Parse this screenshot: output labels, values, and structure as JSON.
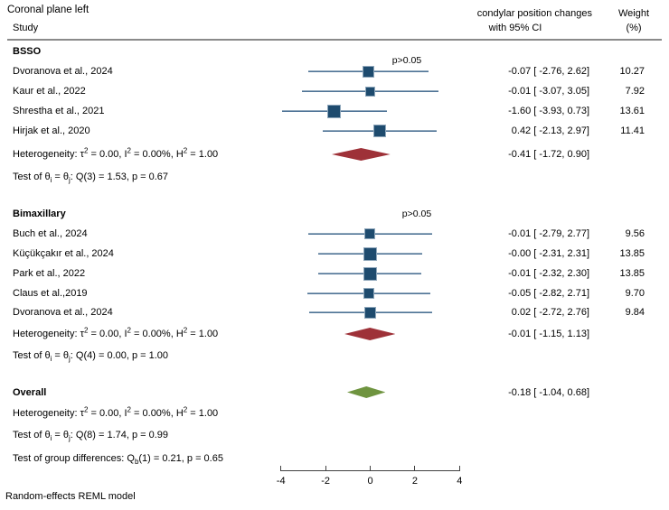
{
  "title": "Coronal plane left",
  "columns": {
    "study": "Study",
    "effect_line1": "condylar position changes",
    "effect_line2": "with 95% CI",
    "weight_line1": "Weight",
    "weight_line2": "(%)"
  },
  "footer": "Random-effects REML model",
  "colors": {
    "text": "#000000",
    "marker_fill": "#1e4b6e",
    "marker_border": "#8fa7bb",
    "ci_line": "#4e7396",
    "subgroup_diamond": "#9e3138",
    "overall_diamond": "#6f9440",
    "header_rule": "#8a8a8a",
    "axis": "#404040"
  },
  "chart_data": {
    "type": "forest",
    "title": "Coronal plane left",
    "effect_header": "condylar position changes with 95% CI",
    "weight_header": "Weight (%)",
    "model_note": "Random-effects REML model",
    "x_axis": {
      "ticks": [
        -4,
        -2,
        0,
        2,
        4
      ],
      "range": [
        -4,
        4
      ],
      "grid": false
    },
    "groups": [
      {
        "name": "BSSO",
        "annotation": "p>0.05",
        "studies": [
          {
            "label": "Dvoranova et al., 2024",
            "est": -0.07,
            "lcl": -2.76,
            "ucl": 2.62,
            "weight": 10.27,
            "effect_display": "-0.07 [ -2.76, 2.62]",
            "weight_display": "10.27"
          },
          {
            "label": "Kaur et al., 2022",
            "est": -0.01,
            "lcl": -3.07,
            "ucl": 3.05,
            "weight": 7.92,
            "effect_display": "-0.01 [ -3.07, 3.05]",
            "weight_display": "7.92"
          },
          {
            "label": "Shrestha et al., 2021",
            "est": -1.6,
            "lcl": -3.93,
            "ucl": 0.73,
            "weight": 13.61,
            "effect_display": "-1.60 [ -3.93, 0.73]",
            "weight_display": "13.61"
          },
          {
            "label": "Hirjak et al., 2020",
            "est": 0.42,
            "lcl": -2.13,
            "ucl": 2.97,
            "weight": 11.41,
            "effect_display": "0.42 [ -2.13, 2.97]",
            "weight_display": "11.41"
          }
        ],
        "summary": {
          "heterogeneity_html": "Heterogeneity: τ<sup>2</sup> = 0.00, I<sup>2</sup> = 0.00%, H<sup>2</sup> = 1.00",
          "est": -0.41,
          "lcl": -1.72,
          "ucl": 0.9,
          "effect_display": "-0.41 [ -1.72, 0.90]"
        },
        "test_html": "Test of θ<sub>i</sub> = θ<sub>j</sub>: Q(3) = 1.53, p = 0.67"
      },
      {
        "name": "Bimaxillary",
        "annotation": "p>0.05",
        "studies": [
          {
            "label": "Buch et al., 2024",
            "est": -0.01,
            "lcl": -2.79,
            "ucl": 2.77,
            "weight": 9.56,
            "effect_display": "-0.01 [ -2.79, 2.77]",
            "weight_display": "9.56"
          },
          {
            "label": "Küçükçakır et al., 2024",
            "est": -0.0,
            "lcl": -2.31,
            "ucl": 2.31,
            "weight": 13.85,
            "effect_display": "-0.00 [ -2.31, 2.31]",
            "weight_display": "13.85"
          },
          {
            "label": "Park et al., 2022",
            "est": -0.01,
            "lcl": -2.32,
            "ucl": 2.3,
            "weight": 13.85,
            "effect_display": "-0.01 [ -2.32, 2.30]",
            "weight_display": "13.85"
          },
          {
            "label": "Claus et al.,2019",
            "est": -0.05,
            "lcl": -2.82,
            "ucl": 2.71,
            "weight": 9.7,
            "effect_display": "-0.05 [ -2.82, 2.71]",
            "weight_display": "9.70"
          },
          {
            "label": "Dvoranova et al., 2024",
            "est": 0.02,
            "lcl": -2.72,
            "ucl": 2.76,
            "weight": 9.84,
            "effect_display": "0.02 [ -2.72, 2.76]",
            "weight_display": "9.84"
          }
        ],
        "summary": {
          "heterogeneity_html": "Heterogeneity: τ<sup>2</sup> = 0.00, I<sup>2</sup> = 0.00%, H<sup>2</sup> = 1.00",
          "est": -0.01,
          "lcl": -1.15,
          "ucl": 1.13,
          "effect_display": "-0.01 [ -1.15, 1.13]"
        },
        "test_html": "Test of θ<sub>i</sub> = θ<sub>j</sub>: Q(4) = 0.00, p = 1.00"
      }
    ],
    "overall": {
      "name": "Overall",
      "est": -0.18,
      "lcl": -1.04,
      "ucl": 0.68,
      "effect_display": "-0.18 [ -1.04, 0.68]",
      "heterogeneity_html": "Heterogeneity: τ<sup>2</sup> = 0.00, I<sup>2</sup> = 0.00%, H<sup>2</sup> = 1.00",
      "test_html": "Test of θ<sub>i</sub> = θ<sub>j</sub>: Q(8) = 1.74, p = 0.99"
    },
    "group_difference_html": "Test of group differences: Q<sub>b</sub>(1) = 0.21, p = 0.65"
  }
}
